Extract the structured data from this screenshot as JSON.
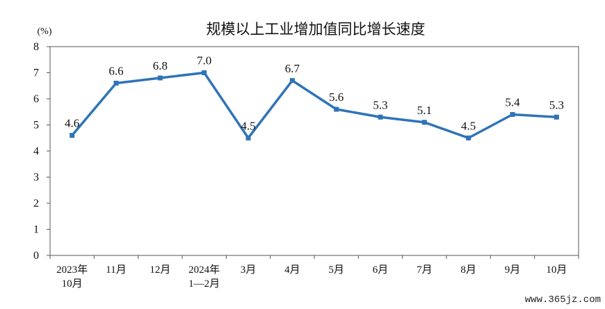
{
  "chart_data": {
    "type": "line",
    "title": "规模以上工业增加值同比增长速度",
    "unit_label": "(%)",
    "categories": [
      [
        "2023年",
        "10月"
      ],
      [
        "11月"
      ],
      [
        "12月"
      ],
      [
        "2024年",
        "1—2月"
      ],
      [
        "3月"
      ],
      [
        "4月"
      ],
      [
        "5月"
      ],
      [
        "6月"
      ],
      [
        "7月"
      ],
      [
        "8月"
      ],
      [
        "9月"
      ],
      [
        "10月"
      ]
    ],
    "series": [
      {
        "values": [
          4.6,
          6.6,
          6.8,
          7.0,
          4.5,
          6.7,
          5.6,
          5.3,
          5.1,
          4.5,
          5.4,
          5.3
        ],
        "labels": [
          "4.6",
          "6.6",
          "6.8",
          "7.0",
          "4.5",
          "6.7",
          "5.6",
          "5.3",
          "5.1",
          "4.5",
          "5.4",
          "5.3"
        ],
        "color": "#2e74b8"
      }
    ],
    "yticks": [
      "0",
      "1",
      "2",
      "3",
      "4",
      "5",
      "6",
      "7",
      "8"
    ],
    "ylim": [
      0,
      8
    ],
    "grid": false,
    "legend": "none"
  },
  "watermark": "www.365jz.com"
}
